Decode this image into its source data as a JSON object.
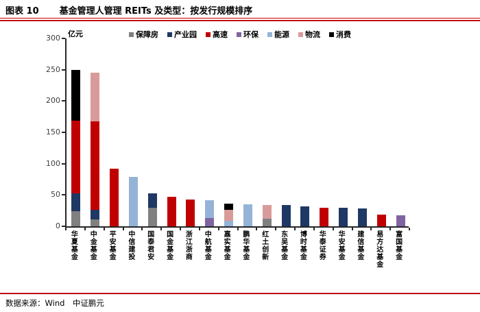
{
  "header": {
    "figure_label": "图表 10",
    "title": "基金管理人管理 REITs 及类型：按发行规模排序"
  },
  "footer": {
    "source": "数据来源：Wind　中证鹏元"
  },
  "accent_colors": {
    "rule_red": "#C00000",
    "axis": "#262626"
  },
  "chart_data": {
    "type": "bar",
    "stacked": true,
    "unit_label": "亿元",
    "grid": false,
    "legend_position": "top",
    "ylim": [
      0,
      300
    ],
    "yticks": [
      0,
      50,
      100,
      150,
      200,
      250,
      300
    ],
    "categories": [
      "华夏基金",
      "中金基金",
      "平安基金",
      "中信建投",
      "国泰君安",
      "国金基金",
      "浙江浙商",
      "中航基金",
      "嘉实基金",
      "鹏华基金",
      "红土创新",
      "东吴基金",
      "博时基金",
      "华泰证券",
      "华安基金",
      "建信基金",
      "易方达基金",
      "富国基金"
    ],
    "series": [
      {
        "name": "保障房",
        "color": "#808080",
        "values": [
          24,
          11,
          0,
          0,
          30,
          0,
          0,
          0,
          0,
          0,
          12,
          0,
          0,
          0,
          0,
          0,
          0,
          0
        ]
      },
      {
        "name": "产业园",
        "color": "#1F3864",
        "values": [
          29,
          15,
          0,
          0,
          23,
          0,
          0,
          0,
          0,
          0,
          0,
          34,
          32,
          0,
          30,
          28,
          0,
          0
        ]
      },
      {
        "name": "高速",
        "color": "#C00000",
        "values": [
          116,
          141,
          92,
          0,
          0,
          47,
          43,
          0,
          0,
          0,
          0,
          0,
          0,
          30,
          0,
          0,
          19,
          0
        ]
      },
      {
        "name": "环保",
        "color": "#8064A2",
        "values": [
          0,
          0,
          0,
          0,
          0,
          0,
          0,
          13,
          0,
          0,
          0,
          0,
          0,
          0,
          0,
          0,
          0,
          18
        ]
      },
      {
        "name": "能源",
        "color": "#95B3D7",
        "values": [
          0,
          0,
          0,
          79,
          0,
          0,
          0,
          29,
          9,
          35,
          0,
          0,
          0,
          0,
          0,
          0,
          0,
          0
        ]
      },
      {
        "name": "物流",
        "color": "#D99B99",
        "values": [
          0,
          78,
          0,
          0,
          0,
          0,
          0,
          0,
          17,
          0,
          22,
          0,
          0,
          0,
          0,
          0,
          0,
          0
        ]
      },
      {
        "name": "消费",
        "color": "#000000",
        "values": [
          81,
          0,
          0,
          0,
          0,
          0,
          0,
          0,
          10,
          0,
          0,
          0,
          0,
          0,
          0,
          0,
          0,
          0
        ]
      }
    ]
  }
}
